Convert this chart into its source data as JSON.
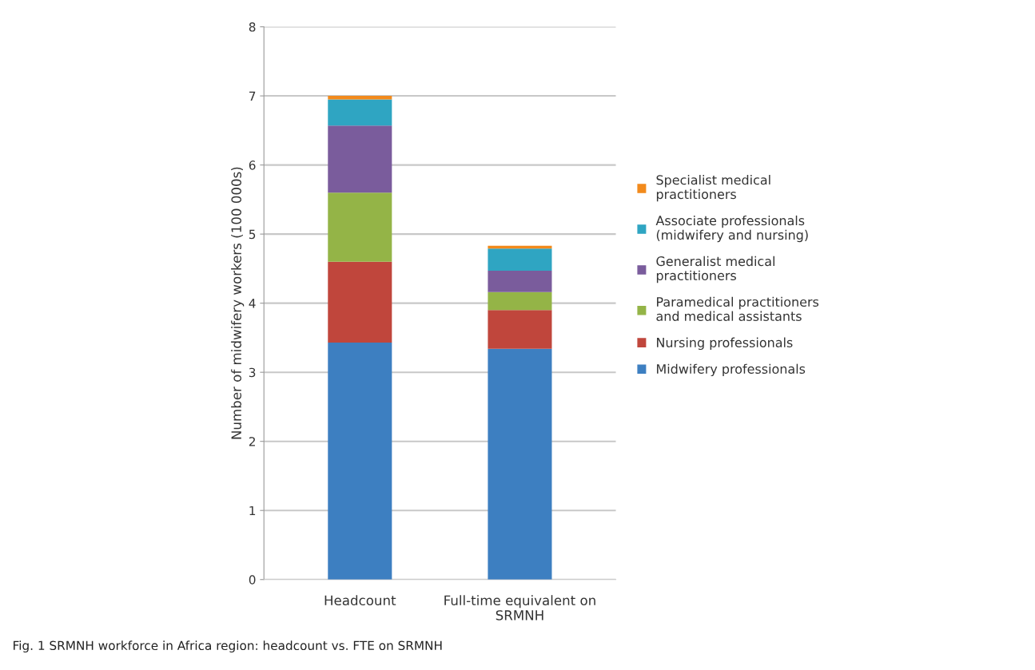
{
  "chart_data": {
    "type": "bar",
    "stacked": true,
    "ylabel": "Number of midwifery workers (100 000s)",
    "categories": [
      "Headcount",
      "Full-time equivalent on\nSRMNH"
    ],
    "series": [
      {
        "name": "Midwifery professionals",
        "color": "#3d7fc1",
        "values": [
          3.43,
          3.34
        ]
      },
      {
        "name": "Nursing professionals",
        "color": "#c0463c",
        "values": [
          1.17,
          0.56
        ]
      },
      {
        "name": "Paramedical practitioners\nand medical assistants",
        "color": "#94b447",
        "values": [
          1.0,
          0.26
        ]
      },
      {
        "name": "Generalist medical\npractitioners",
        "color": "#7a5c9c",
        "values": [
          0.97,
          0.31
        ]
      },
      {
        "name": "Associate professionals\n(midwifery and nursing)",
        "color": "#2fa5c2",
        "values": [
          0.38,
          0.32
        ]
      },
      {
        "name": "Specialist medical\npractitioners",
        "color": "#f28a1c",
        "values": [
          0.05,
          0.04
        ]
      }
    ],
    "ylim": [
      0,
      8
    ],
    "yticks": [
      0,
      1,
      2,
      3,
      4,
      5,
      6,
      7,
      8
    ],
    "grid": "y",
    "legend": "right",
    "annotations": [
      "Fig. 1 SRMNH workforce in Africa region: headcount vs. FTE on SRMNH"
    ]
  }
}
